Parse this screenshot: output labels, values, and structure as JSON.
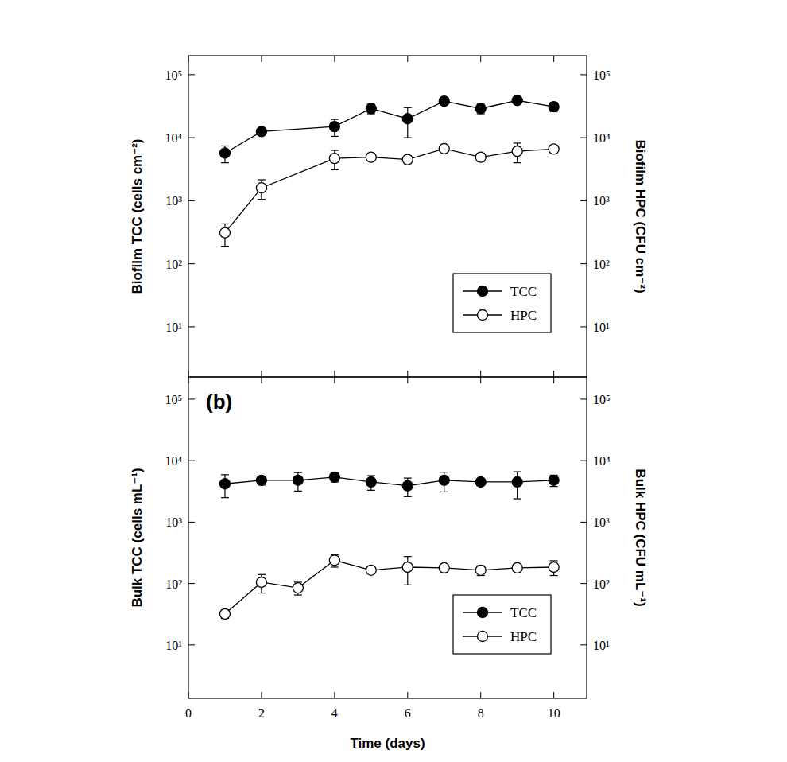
{
  "chart_data": [
    {
      "type": "line",
      "y_label": "Biofilm TCC (cells cm⁻²)",
      "y2_label": "Biofilm HPC (CFU cm⁻²)",
      "x": [
        1,
        2,
        4,
        5,
        6,
        7,
        8,
        9,
        10
      ],
      "series": [
        {
          "name": "TCC",
          "color": "#000000",
          "marker": "circle",
          "values": [
            5700,
            12500,
            15000,
            29000,
            20000,
            38000,
            29000,
            39000,
            31000
          ],
          "errors": [
            1700,
            1000,
            4500,
            5000,
            10000,
            4000,
            5000,
            3000,
            5000
          ]
        },
        {
          "name": "HPC",
          "color": "#000000",
          "marker": "open-circle",
          "axis": "y2",
          "values": [
            310,
            1600,
            4700,
            4900,
            4500,
            6700,
            4900,
            6100,
            6600
          ],
          "errors": [
            120,
            550,
            1600,
            400,
            400,
            500,
            700,
            2100,
            400
          ]
        }
      ],
      "xlim": [
        0,
        10.9
      ],
      "xticks": [
        0,
        2,
        4,
        6,
        8,
        10
      ],
      "ylim": [
        1.6,
        200000
      ],
      "yticks": [
        {
          "value": 10,
          "label": "10¹"
        },
        {
          "value": 100,
          "label": "10²"
        },
        {
          "value": 1000,
          "label": "10³"
        },
        {
          "value": 10000,
          "label": "10⁴"
        },
        {
          "value": 100000,
          "label": "10⁵"
        }
      ],
      "y2lim": [
        1.6,
        200000
      ],
      "y2ticks": [
        {
          "value": 10,
          "label": "10¹"
        },
        {
          "value": 100,
          "label": "10²"
        },
        {
          "value": 1000,
          "label": "10³"
        },
        {
          "value": 10000,
          "label": "10⁴"
        },
        {
          "value": 100000,
          "label": "10⁵"
        }
      ],
      "log": "y",
      "legend": "lower right",
      "tick_labels": "y"
    },
    {
      "type": "line",
      "annotation": "(b)",
      "x_label": "Time (days)",
      "y_label": "Bulk TCC (cells mL⁻¹)",
      "y2_label": "Bulk HPC (CFU mL⁻¹)",
      "x": [
        1,
        2,
        3,
        4,
        5,
        6,
        7,
        8,
        9,
        10
      ],
      "series": [
        {
          "name": "TCC",
          "color": "#000000",
          "marker": "circle",
          "values": [
            4200,
            4800,
            4800,
            5400,
            4500,
            3900,
            4800,
            4500,
            4500,
            4800
          ],
          "errors": [
            1700,
            800,
            1600,
            900,
            1200,
            1300,
            1700,
            500,
            2100,
            1000
          ]
        },
        {
          "name": "HPC",
          "color": "#000000",
          "marker": "open-circle",
          "axis": "y2",
          "values": [
            32,
            105,
            85,
            240,
            165,
            185,
            180,
            165,
            180,
            185
          ],
          "errors": [
            5,
            35,
            20,
            55,
            20,
            90,
            25,
            30,
            15,
            50
          ]
        }
      ],
      "xlim": [
        0,
        10.9
      ],
      "xticks": [
        0,
        2,
        4,
        6,
        8,
        10
      ],
      "ylim": [
        1.35,
        230000
      ],
      "yticks": [
        {
          "value": 10,
          "label": "10¹"
        },
        {
          "value": 100,
          "label": "10²"
        },
        {
          "value": 1000,
          "label": "10³"
        },
        {
          "value": 10000,
          "label": "10⁴"
        },
        {
          "value": 100000,
          "label": "10⁵"
        }
      ],
      "y2lim": [
        1.35,
        230000
      ],
      "y2ticks": [
        {
          "value": 10,
          "label": "10¹"
        },
        {
          "value": 100,
          "label": "10²"
        },
        {
          "value": 1000,
          "label": "10³"
        },
        {
          "value": 10000,
          "label": "10⁴"
        },
        {
          "value": 100000,
          "label": "10⁵"
        }
      ],
      "log": "y",
      "legend": "lower right",
      "tick_labels": true
    }
  ]
}
